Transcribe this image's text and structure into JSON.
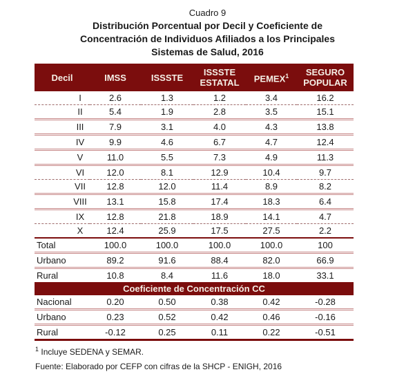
{
  "title": {
    "kicker": "Cuadro 9",
    "lines": [
      "Distribución Porcentual por Decil y Coeficiente de",
      "Concentración de Individuos Afiliados a los Principales",
      "Sistemas de Salud, 2016"
    ]
  },
  "colors": {
    "maroon": "#7B0D0D",
    "separator_pink": "#C68686",
    "separator_dark": "#9E6B6B",
    "header_text": "#F5EFE6"
  },
  "table": {
    "header": {
      "decil": "Decil",
      "imss": "IMSS",
      "issste": "ISSSTE",
      "issste_estatal": "ISSSTE ESTATAL",
      "pemex": "PEMEX",
      "pemex_footnote_mark": "1",
      "seguro_popular": "SEGURO POPULAR"
    },
    "decile_rows": [
      {
        "label": "I",
        "values": [
          "2.6",
          "1.3",
          "1.2",
          "3.4",
          "16.2"
        ]
      },
      {
        "label": "II",
        "values": [
          "5.4",
          "1.9",
          "2.8",
          "3.5",
          "15.1"
        ]
      },
      {
        "label": "III",
        "values": [
          "7.9",
          "3.1",
          "4.0",
          "4.3",
          "13.8"
        ]
      },
      {
        "label": "IV",
        "values": [
          "9.9",
          "4.6",
          "6.7",
          "4.7",
          "12.4"
        ]
      },
      {
        "label": "V",
        "values": [
          "11.0",
          "5.5",
          "7.3",
          "4.9",
          "11.3"
        ]
      },
      {
        "label": "VI",
        "values": [
          "12.0",
          "8.1",
          "12.9",
          "10.4",
          "9.7"
        ]
      },
      {
        "label": "VII",
        "values": [
          "12.8",
          "12.0",
          "11.4",
          "8.9",
          "8.2"
        ]
      },
      {
        "label": "VIII",
        "values": [
          "13.1",
          "15.8",
          "17.4",
          "18.3",
          "6.4"
        ]
      },
      {
        "label": "IX",
        "values": [
          "12.8",
          "21.8",
          "18.9",
          "14.1",
          "4.7"
        ]
      },
      {
        "label": "X",
        "values": [
          "12.4",
          "25.9",
          "17.5",
          "27.5",
          "2.2"
        ]
      }
    ],
    "summary_rows": [
      {
        "label": "Total",
        "values": [
          "100.0",
          "100.0",
          "100.0",
          "100.0",
          "100"
        ]
      },
      {
        "label": "Urbano",
        "values": [
          "89.2",
          "91.6",
          "88.4",
          "82.0",
          "66.9"
        ]
      },
      {
        "label": "Rural",
        "values": [
          "10.8",
          "8.4",
          "11.6",
          "18.0",
          "33.1"
        ]
      }
    ],
    "section_header": "Coeficiente de Concentración CC",
    "cc_rows": [
      {
        "label": "Nacional",
        "values": [
          "0.20",
          "0.50",
          "0.38",
          "0.42",
          "-0.28"
        ]
      },
      {
        "label": "Urbano",
        "values": [
          "0.23",
          "0.52",
          "0.42",
          "0.46",
          "-0.16"
        ]
      },
      {
        "label": "Rural",
        "values": [
          "-0.12",
          "0.25",
          "0.11",
          "0.22",
          "-0.51"
        ]
      }
    ]
  },
  "footnotes": {
    "note_mark": "1",
    "note_text": "Incluye SEDENA y SEMAR.",
    "source": "Fuente: Elaborado por CEFP con cifras de la SHCP - ENIGH, 2016"
  },
  "chart_data": {
    "type": "table",
    "title": "Cuadro 9 — Distribución Porcentual por Decil y Coeficiente de Concentración de Individuos Afiliados a los Principales Sistemas de Salud, 2016",
    "columns": [
      "Decil",
      "IMSS",
      "ISSSTE",
      "ISSSTE ESTATAL",
      "PEMEX",
      "SEGURO POPULAR"
    ],
    "rows": [
      [
        "I",
        2.6,
        1.3,
        1.2,
        3.4,
        16.2
      ],
      [
        "II",
        5.4,
        1.9,
        2.8,
        3.5,
        15.1
      ],
      [
        "III",
        7.9,
        3.1,
        4.0,
        4.3,
        13.8
      ],
      [
        "IV",
        9.9,
        4.6,
        6.7,
        4.7,
        12.4
      ],
      [
        "V",
        11.0,
        5.5,
        7.3,
        4.9,
        11.3
      ],
      [
        "VI",
        12.0,
        8.1,
        12.9,
        10.4,
        9.7
      ],
      [
        "VII",
        12.8,
        12.0,
        11.4,
        8.9,
        8.2
      ],
      [
        "VIII",
        13.1,
        15.8,
        17.4,
        18.3,
        6.4
      ],
      [
        "IX",
        12.8,
        21.8,
        18.9,
        14.1,
        4.7
      ],
      [
        "X",
        12.4,
        25.9,
        17.5,
        27.5,
        2.2
      ],
      [
        "Total",
        100.0,
        100.0,
        100.0,
        100.0,
        100
      ],
      [
        "Urbano",
        89.2,
        91.6,
        88.4,
        82.0,
        66.9
      ],
      [
        "Rural",
        10.8,
        8.4,
        11.6,
        18.0,
        33.1
      ],
      [
        "CC Nacional",
        0.2,
        0.5,
        0.38,
        0.42,
        -0.28
      ],
      [
        "CC Urbano",
        0.23,
        0.52,
        0.42,
        0.46,
        -0.16
      ],
      [
        "CC Rural",
        -0.12,
        0.25,
        0.11,
        0.22,
        -0.51
      ]
    ]
  }
}
